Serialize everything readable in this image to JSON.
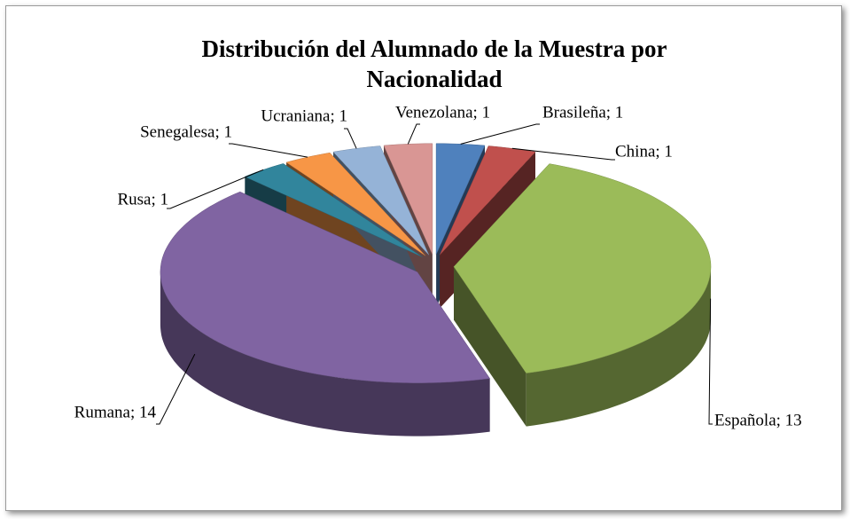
{
  "chart_data": {
    "type": "pie3d",
    "title": "Distribución del Alumnado de la Muestra por Nacionalidad",
    "value_labels": [
      "Brasileña; 1",
      "China; 1",
      "Española; 13",
      "Rumana; 14",
      "Rusa; 1",
      "Senegalesa; 1",
      "Ucraniana; 1",
      "Venezolana; 1"
    ],
    "values": [
      1,
      1,
      13,
      14,
      1,
      1,
      1,
      1
    ],
    "colors": [
      "#4f81bd",
      "#c0504d",
      "#9bbb59",
      "#8064a2",
      "#31859c",
      "#f79646",
      "#95b3d7",
      "#d99694"
    ],
    "exploded": true
  }
}
